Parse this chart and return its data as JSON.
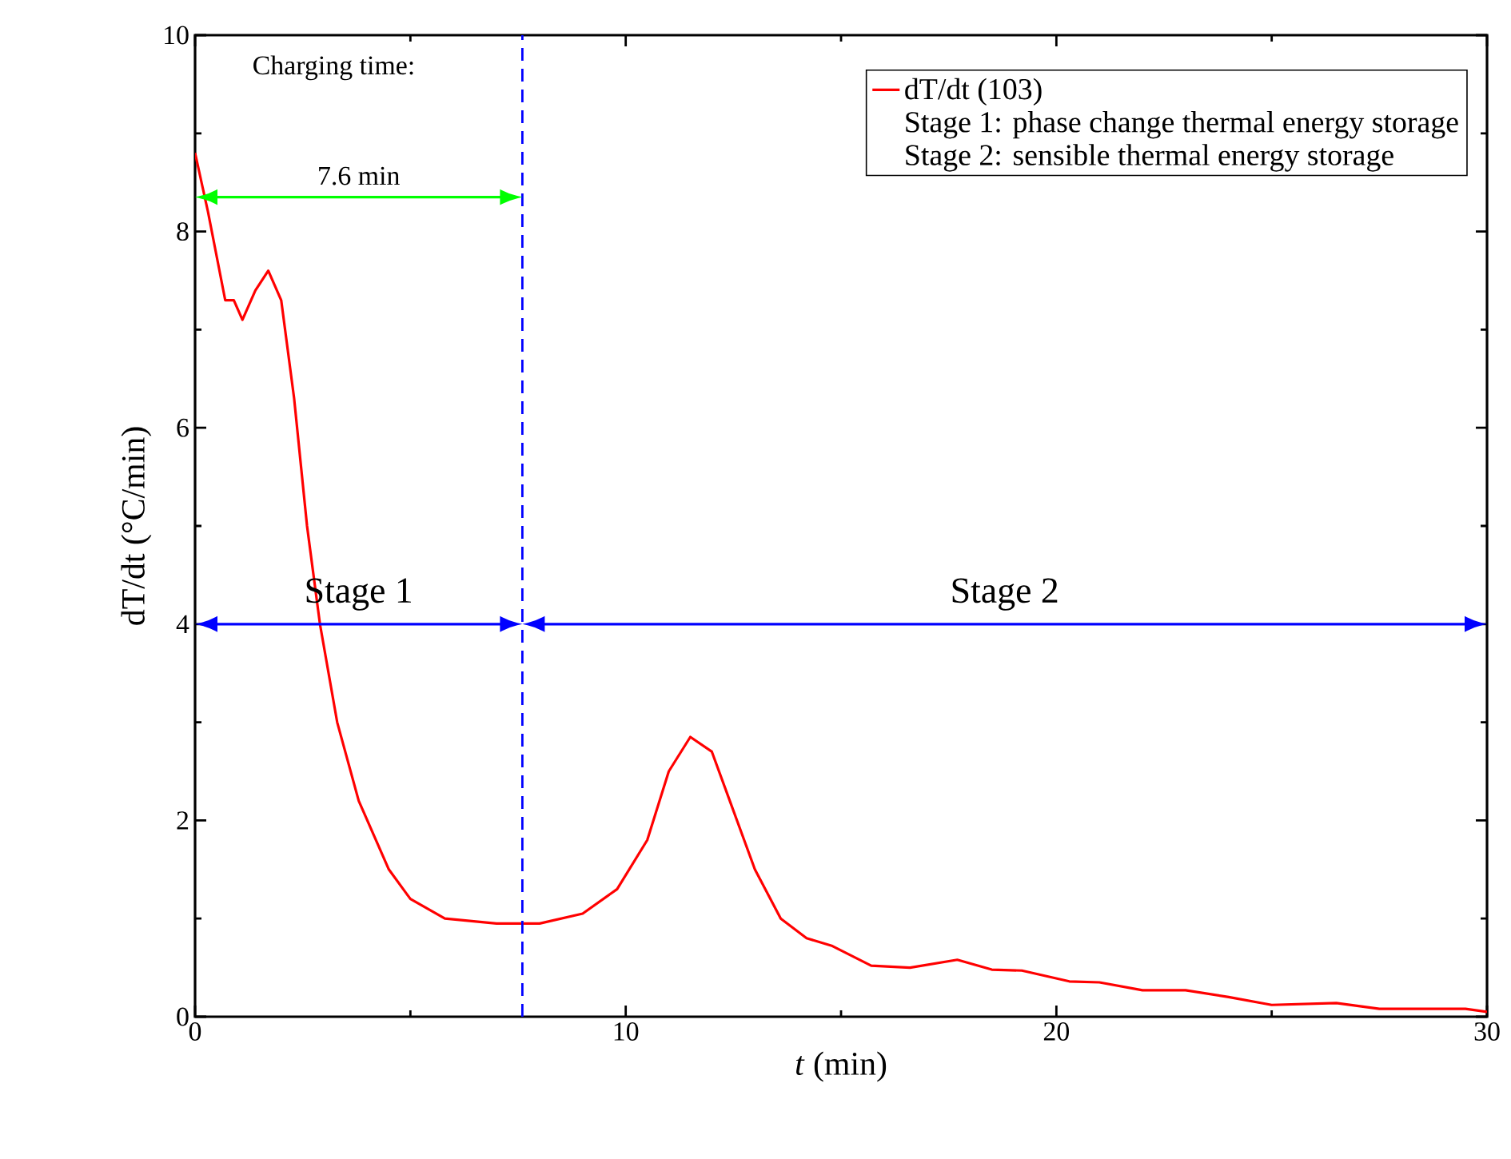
{
  "chart_data": {
    "type": "line",
    "xlabel": "*t* (min)",
    "ylabel": "dT/dt (°C/min)",
    "xlim": [
      0,
      30
    ],
    "ylim": [
      0,
      10
    ],
    "xticks": [
      0,
      10,
      20,
      30
    ],
    "yticks": [
      0,
      2,
      4,
      6,
      8,
      10
    ],
    "legend": "top right",
    "line_style": "solid",
    "marker": "none",
    "series": [
      {
        "name": "dT/dt (103)",
        "color": "#ff0000",
        "x": [
          0,
          0.3,
          0.7,
          0.9,
          1.1,
          1.4,
          1.7,
          2.0,
          2.3,
          2.6,
          2.9,
          3.3,
          3.8,
          4.5,
          5.0,
          5.8,
          7.0,
          8.0,
          9.0,
          9.8,
          10.5,
          11.0,
          11.5,
          12.0,
          12.5,
          13.0,
          13.6,
          14.2,
          14.8,
          15.7,
          16.6,
          17.7,
          18.5,
          19.2,
          20.3,
          21.0,
          22.0,
          23.0,
          24.0,
          25.0,
          26.5,
          27.5,
          29.5,
          30
        ],
        "values": [
          8.8,
          8.2,
          7.3,
          7.3,
          7.1,
          7.4,
          7.6,
          7.3,
          6.3,
          5.0,
          4.0,
          3.0,
          2.2,
          1.5,
          1.2,
          1.0,
          0.95,
          0.95,
          1.05,
          1.3,
          1.8,
          2.5,
          2.85,
          2.7,
          2.1,
          1.5,
          1.0,
          0.8,
          0.72,
          0.52,
          0.5,
          0.58,
          0.48,
          0.47,
          0.36,
          0.35,
          0.27,
          0.27,
          0.2,
          0.12,
          0.14,
          0.08,
          0.08,
          0.05
        ]
      }
    ],
    "ref_lines": [
      {
        "axis": "x",
        "value": 7.6,
        "color": "#0000ff",
        "line_style": "dashed"
      }
    ],
    "annotations": [
      "Charging time:",
      "7.6 min",
      "Stage 1",
      "Stage 2",
      "Stage 1: phase change thermal energy storage",
      "Stage 2: sensible thermal energy storage"
    ]
  }
}
